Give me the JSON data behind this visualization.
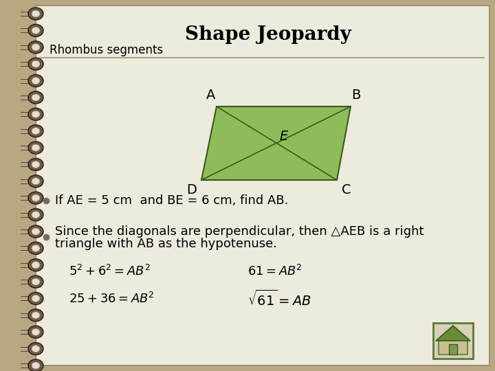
{
  "title": "Shape Jeopardy",
  "subtitle": "Rhombus segments",
  "bg_color": "#b8a882",
  "paper_color": "#edeade",
  "rhombus_fill": "#8fbc5a",
  "rhombus_edge": "#3a5a1a",
  "line1": "If AE = 5 cm  and BE = 6 cm, find AB.",
  "line2a": "Since the diagonals are perpendicular, then △AEB is a right",
  "line2b": "triangle with AB as the hypotenuse.",
  "eq1_left": "$5^2 + 6^2 = AB^2$",
  "eq1_right": "$61 = AB^2$",
  "eq2_left": "$25 + 36 = AB^2$",
  "eq2_right": "$\\sqrt{61} = AB$",
  "title_fontsize": 20,
  "subtitle_fontsize": 12,
  "body_fontsize": 13,
  "eq_fontsize": 13,
  "spiral_color_outer": "#6a5a4a",
  "spiral_color_inner": "#c8baa8",
  "spiral_highlight": "#e8ddd0"
}
